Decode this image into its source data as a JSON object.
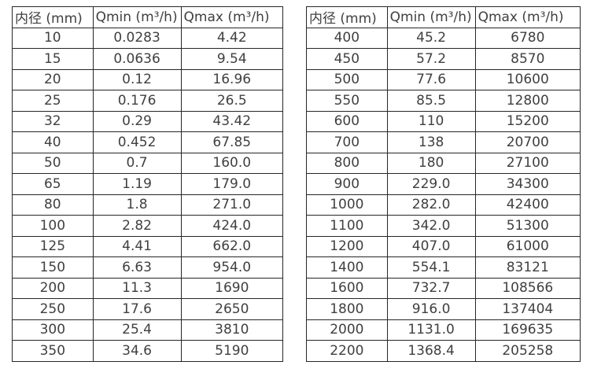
{
  "page": {
    "background": "#ffffff",
    "border_color": "#262626",
    "text_color": "#404040"
  },
  "tables": [
    {
      "headers": [
        "内径 (mm)",
        "Qmin (m³/h)",
        "Qmax (m³/h)"
      ],
      "rows": [
        [
          "10",
          "0.0283",
          "4.42"
        ],
        [
          "15",
          "0.0636",
          "9.54"
        ],
        [
          "20",
          "0.12",
          "16.96"
        ],
        [
          "25",
          "0.176",
          "26.5"
        ],
        [
          "32",
          "0.29",
          "43.42"
        ],
        [
          "40",
          "0.452",
          "67.85"
        ],
        [
          "50",
          "0.7",
          "160.0"
        ],
        [
          "65",
          "1.19",
          "179.0"
        ],
        [
          "80",
          "1.8",
          "271.0"
        ],
        [
          "100",
          "2.82",
          "424.0"
        ],
        [
          "125",
          "4.41",
          "662.0"
        ],
        [
          "150",
          "6.63",
          "954.0"
        ],
        [
          "200",
          "11.3",
          "1690"
        ],
        [
          "250",
          "17.6",
          "2650"
        ],
        [
          "300",
          "25.4",
          "3810"
        ],
        [
          "350",
          "34.6",
          "5190"
        ]
      ]
    },
    {
      "headers": [
        "内径 (mm)",
        "Qmin (m³/h)",
        "Qmax (m³/h)"
      ],
      "rows": [
        [
          "400",
          "45.2",
          "6780"
        ],
        [
          "450",
          "57.2",
          "8570"
        ],
        [
          "500",
          "77.6",
          "10600"
        ],
        [
          "550",
          "85.5",
          "12800"
        ],
        [
          "600",
          "110",
          "15200"
        ],
        [
          "700",
          "138",
          "20700"
        ],
        [
          "800",
          "180",
          "27100"
        ],
        [
          "900",
          "229.0",
          "34300"
        ],
        [
          "1000",
          "282.0",
          "42400"
        ],
        [
          "1100",
          "342.0",
          "51300"
        ],
        [
          "1200",
          "407.0",
          "61000"
        ],
        [
          "1400",
          "554.1",
          "83121"
        ],
        [
          "1600",
          "732.7",
          "108566"
        ],
        [
          "1800",
          "916.0",
          "137404"
        ],
        [
          "2000",
          "1131.0",
          "169635"
        ],
        [
          "2200",
          "1368.4",
          "205258"
        ]
      ]
    }
  ]
}
